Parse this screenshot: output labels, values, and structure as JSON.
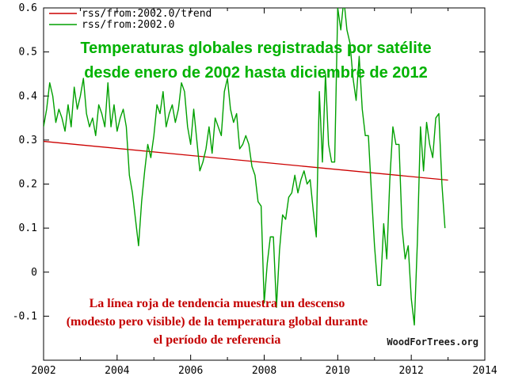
{
  "page": {
    "background": "#ffffff"
  },
  "chart_data": {
    "type": "line",
    "title_lines": [
      "Temperaturas globales registradas por satélite",
      "desde enero de 2002 hasta diciembre de 2012"
    ],
    "title_color": "#00b200",
    "annotation_lines": [
      "La línea roja de tendencia muestra un descenso",
      "(modesto pero visible) de la temperatura global durante",
      "el período de referencia"
    ],
    "annotation_color": "#c40000",
    "watermark": "WoodForTrees.org",
    "legend": {
      "position": "top-left",
      "entries": [
        {
          "label": "rss/from:2002.0/trend",
          "color": "#cc0000"
        },
        {
          "label": "rss/from:2002.0",
          "color": "#00a000"
        }
      ]
    },
    "x_axis": {
      "min": 2002,
      "max": 2014,
      "major_ticks": [
        2002,
        2004,
        2006,
        2008,
        2010,
        2012,
        2014
      ],
      "minor_tick_step": 1,
      "tick_labels": [
        "2002",
        "2004",
        "2006",
        "2008",
        "2010",
        "2012",
        "2014"
      ]
    },
    "y_axis": {
      "min": -0.2,
      "max": 0.6,
      "major_ticks": [
        -0.1,
        0,
        0.1,
        0.2,
        0.3,
        0.4,
        0.5,
        0.6
      ],
      "tick_labels": [
        "-0.1",
        "0",
        "0.1",
        "0.2",
        "0.3",
        "0.4",
        "0.5",
        "0.6"
      ]
    },
    "grid": false,
    "series": [
      {
        "name": "rss/from:2002.0/trend",
        "kind": "trend",
        "color": "#cc0000",
        "x": [
          2002.0,
          2013.0
        ],
        "values": [
          0.297,
          0.209
        ]
      },
      {
        "name": "rss/from:2002.0",
        "kind": "monthly",
        "color": "#00a000",
        "x_start": 2002.0,
        "x_step": 0.0833333333,
        "values": [
          0.33,
          0.37,
          0.43,
          0.4,
          0.34,
          0.37,
          0.35,
          0.32,
          0.38,
          0.33,
          0.42,
          0.37,
          0.4,
          0.44,
          0.36,
          0.33,
          0.35,
          0.31,
          0.38,
          0.36,
          0.33,
          0.43,
          0.33,
          0.38,
          0.32,
          0.35,
          0.37,
          0.33,
          0.22,
          0.18,
          0.12,
          0.06,
          0.16,
          0.23,
          0.29,
          0.26,
          0.31,
          0.38,
          0.36,
          0.41,
          0.33,
          0.36,
          0.38,
          0.34,
          0.37,
          0.43,
          0.41,
          0.33,
          0.29,
          0.37,
          0.3,
          0.23,
          0.25,
          0.28,
          0.33,
          0.27,
          0.35,
          0.33,
          0.31,
          0.41,
          0.44,
          0.37,
          0.34,
          0.36,
          0.28,
          0.29,
          0.31,
          0.29,
          0.24,
          0.22,
          0.16,
          0.15,
          -0.07,
          0.02,
          0.08,
          0.08,
          -0.08,
          0.05,
          0.13,
          0.12,
          0.17,
          0.18,
          0.22,
          0.18,
          0.21,
          0.23,
          0.2,
          0.21,
          0.14,
          0.08,
          0.41,
          0.25,
          0.45,
          0.29,
          0.25,
          0.25,
          0.6,
          0.55,
          0.62,
          0.55,
          0.52,
          0.44,
          0.39,
          0.49,
          0.37,
          0.31,
          0.31,
          0.18,
          0.06,
          -0.03,
          -0.03,
          0.11,
          0.03,
          0.21,
          0.33,
          0.29,
          0.29,
          0.1,
          0.03,
          0.06,
          -0.06,
          -0.12,
          0.07,
          0.33,
          0.23,
          0.34,
          0.29,
          0.26,
          0.35,
          0.36,
          0.2,
          0.1
        ]
      }
    ]
  }
}
